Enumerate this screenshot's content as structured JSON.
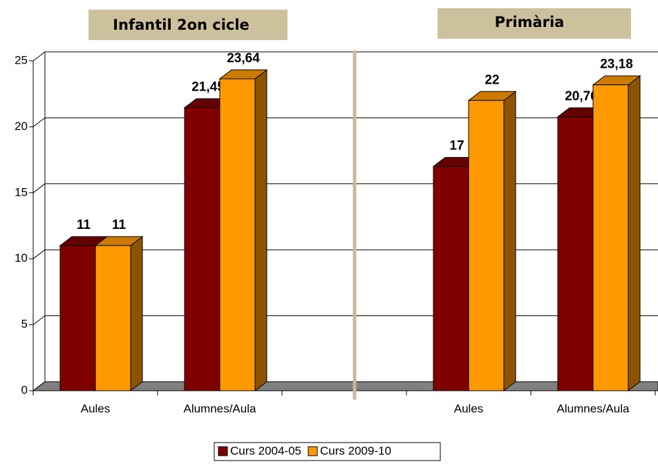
{
  "chart_data": {
    "type": "bar3d",
    "annotations": [
      "Infantil 2on cicle",
      "Primària"
    ],
    "categories": [
      "Aules",
      "Alumnes/Aula",
      null,
      "Aules",
      "Alumnes/Aula"
    ],
    "series": [
      {
        "name": "Curs 2004-05",
        "color": "#800000",
        "values": [
          11,
          21.45,
          null,
          17,
          20.76
        ],
        "value_labels": [
          "11",
          "21,45",
          null,
          "17",
          "20,76"
        ]
      },
      {
        "name": "Curs 2009-10",
        "color": "#ff9900",
        "values": [
          11,
          23.64,
          null,
          22,
          23.18
        ],
        "value_labels": [
          "11",
          "23,64",
          null,
          "22",
          "23,18"
        ]
      }
    ],
    "ylim": [
      0,
      25
    ],
    "yticks": [
      0,
      5,
      10,
      15,
      20,
      25
    ],
    "grid": true,
    "legend": "bottom"
  }
}
